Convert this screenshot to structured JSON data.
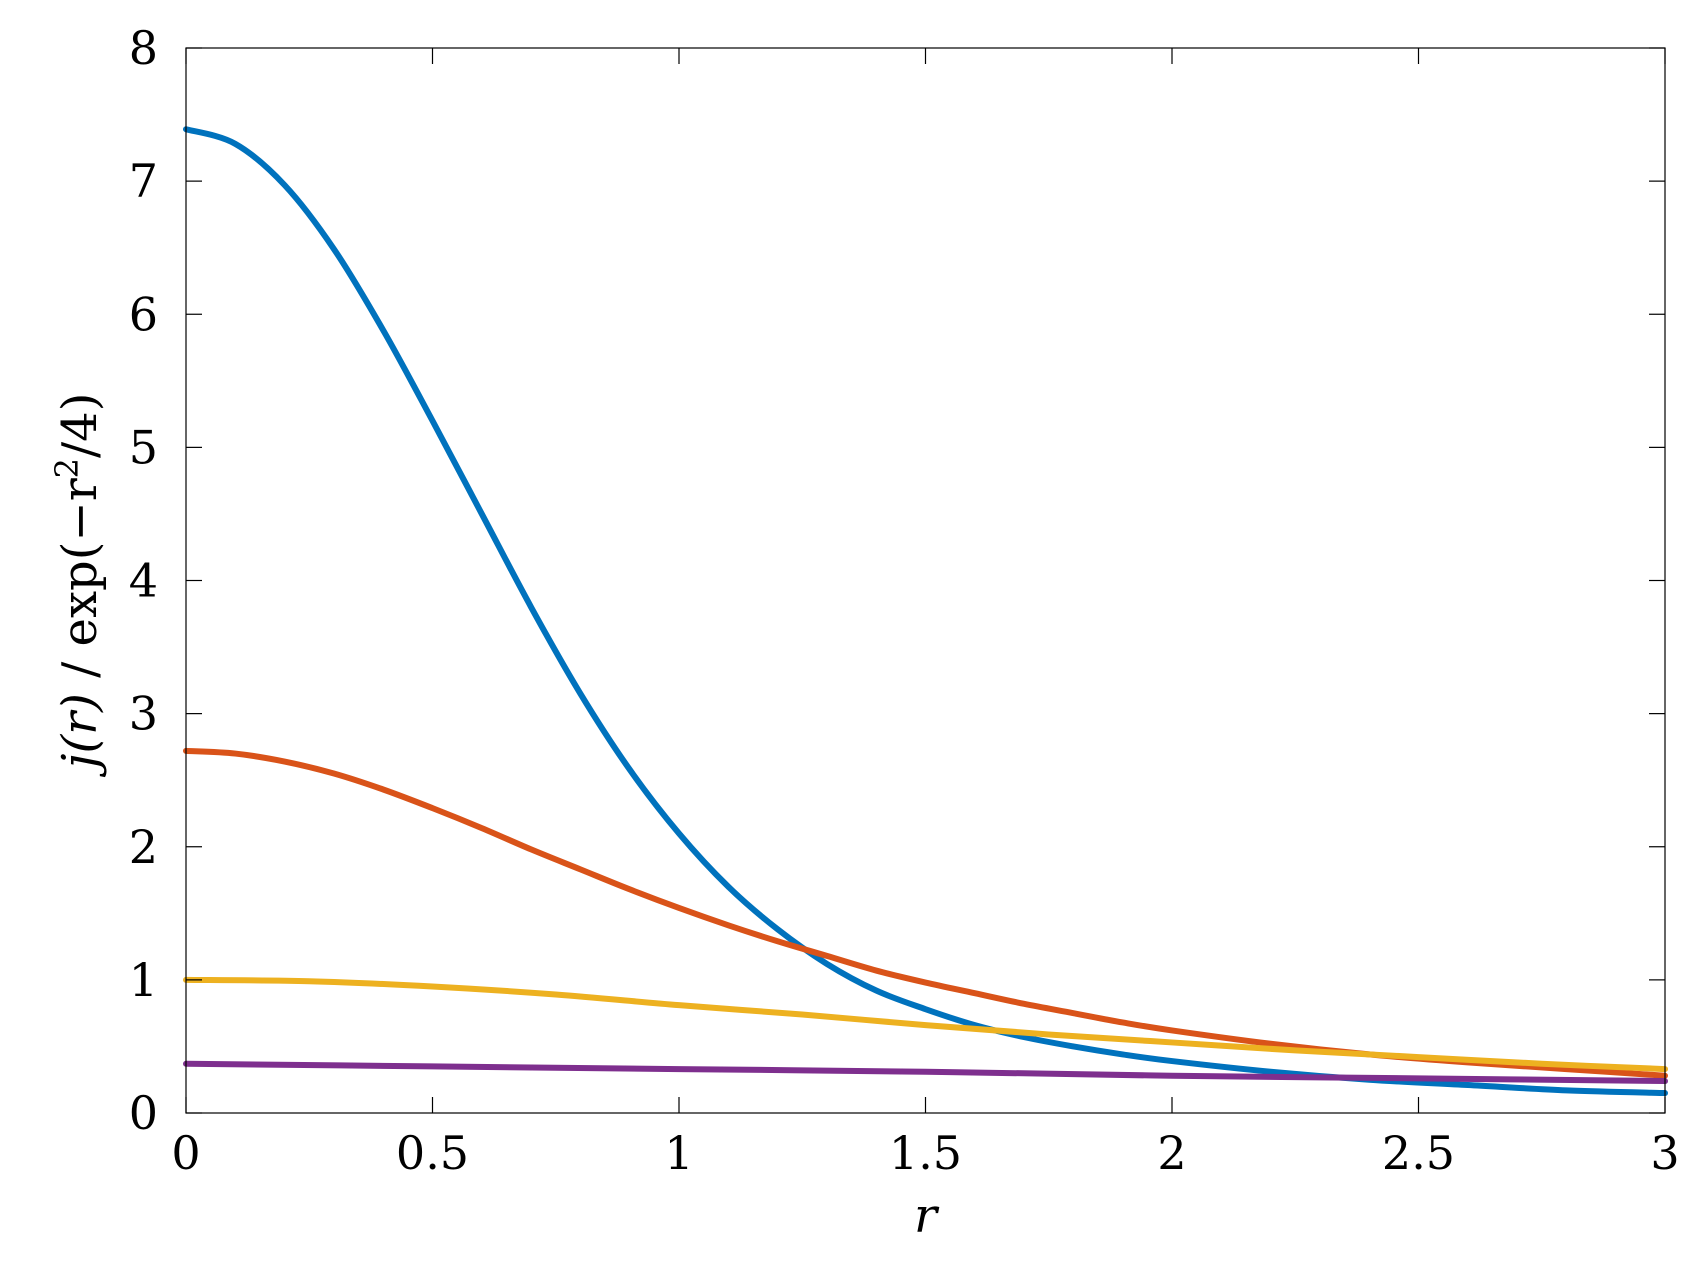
{
  "chart_data": {
    "type": "line",
    "xlabel": "r",
    "ylabel": {
      "prefix": "j(r)",
      "sep": " / exp(−r",
      "sup": "2",
      "suffix": "/4)"
    },
    "xlim": [
      0,
      3
    ],
    "ylim": [
      0,
      8
    ],
    "xticks": [
      0,
      0.5,
      1,
      1.5,
      2,
      2.5,
      3
    ],
    "xtick_labels": [
      "0",
      "0.5",
      "1",
      "1.5",
      "2",
      "2.5",
      "3"
    ],
    "yticks": [
      0,
      1,
      2,
      3,
      4,
      5,
      6,
      7,
      8
    ],
    "ytick_labels": [
      "0",
      "1",
      "2",
      "3",
      "4",
      "5",
      "6",
      "7",
      "8"
    ],
    "grid": false,
    "legend": "none",
    "series": [
      {
        "color": "#0072BD",
        "x": [
          0,
          0.1,
          0.2,
          0.3,
          0.4,
          0.5,
          0.6,
          0.7,
          0.8,
          0.9,
          1.0,
          1.1,
          1.2,
          1.3,
          1.4,
          1.5,
          1.6,
          1.7,
          1.8,
          1.9,
          2.0,
          2.2,
          2.4,
          2.6,
          2.8,
          3.0
        ],
        "y": [
          7.39,
          7.28,
          6.97,
          6.49,
          5.88,
          5.2,
          4.5,
          3.8,
          3.15,
          2.58,
          2.1,
          1.7,
          1.38,
          1.12,
          0.92,
          0.78,
          0.66,
          0.57,
          0.5,
          0.44,
          0.39,
          0.31,
          0.25,
          0.21,
          0.17,
          0.15
        ]
      },
      {
        "color": "#D95319",
        "x": [
          0,
          0.1,
          0.2,
          0.3,
          0.4,
          0.5,
          0.6,
          0.7,
          0.8,
          0.9,
          1.0,
          1.1,
          1.2,
          1.3,
          1.4,
          1.5,
          1.6,
          1.7,
          1.8,
          1.9,
          2.0,
          2.2,
          2.4,
          2.6,
          2.8,
          3.0
        ],
        "y": [
          2.72,
          2.7,
          2.64,
          2.55,
          2.43,
          2.29,
          2.14,
          1.98,
          1.83,
          1.68,
          1.54,
          1.41,
          1.29,
          1.18,
          1.07,
          0.98,
          0.9,
          0.82,
          0.75,
          0.68,
          0.62,
          0.52,
          0.44,
          0.38,
          0.33,
          0.28
        ]
      },
      {
        "color": "#EDB120",
        "x": [
          0,
          0.25,
          0.5,
          0.75,
          1.0,
          1.25,
          1.5,
          1.75,
          2.0,
          2.25,
          2.5,
          2.75,
          3.0
        ],
        "y": [
          1.0,
          0.99,
          0.95,
          0.89,
          0.81,
          0.74,
          0.66,
          0.59,
          0.53,
          0.47,
          0.42,
          0.37,
          0.33
        ]
      },
      {
        "color": "#7E2F8E",
        "x": [
          0,
          0.5,
          1.0,
          1.5,
          2.0,
          2.5,
          3.0
        ],
        "y": [
          0.37,
          0.35,
          0.33,
          0.31,
          0.28,
          0.26,
          0.24
        ]
      }
    ]
  }
}
